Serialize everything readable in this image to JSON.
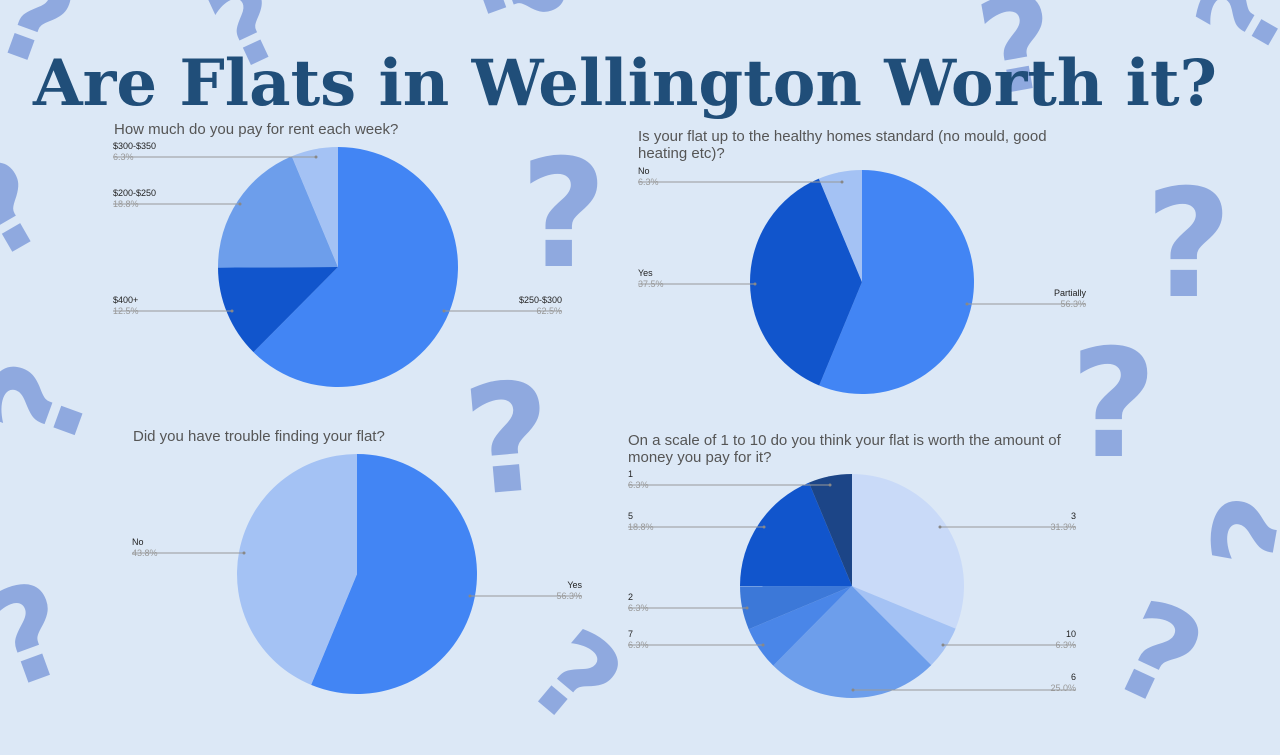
{
  "slide": {
    "title": "Are Flats in Wellington Worth it?"
  },
  "decoration": {
    "glyph": "?",
    "color": "#8fa9df"
  },
  "chart_data": [
    {
      "type": "pie",
      "title": "How much do you pay for rent each week?",
      "slices": [
        {
          "label": "$250-$300",
          "pct": "62.5%",
          "value": 62.5,
          "color": "#4285f4"
        },
        {
          "label": "$400+",
          "pct": "12.5%",
          "value": 12.5,
          "color": "#1155cc"
        },
        {
          "label": "$200-$250",
          "pct": "18.8%",
          "value": 18.8,
          "color": "#6d9eeb"
        },
        {
          "label": "$300-$350",
          "pct": "6.3%",
          "value": 6.3,
          "color": "#a4c2f4"
        }
      ]
    },
    {
      "type": "pie",
      "title": "Is your flat up to the healthy homes standard (no mould, good heating etc)?",
      "slices": [
        {
          "label": "Partially",
          "pct": "56.3%",
          "value": 56.3,
          "color": "#4285f4"
        },
        {
          "label": "Yes",
          "pct": "37.5%",
          "value": 37.5,
          "color": "#1155cc"
        },
        {
          "label": "No",
          "pct": "6.3%",
          "value": 6.3,
          "color": "#a4c2f4"
        }
      ]
    },
    {
      "type": "pie",
      "title": "Did you have trouble finding your flat?",
      "slices": [
        {
          "label": "Yes",
          "pct": "56.3%",
          "value": 56.3,
          "color": "#4285f4"
        },
        {
          "label": "No",
          "pct": "43.8%",
          "value": 43.8,
          "color": "#a4c2f4"
        }
      ]
    },
    {
      "type": "pie",
      "title": "On a scale of 1 to 10 do you think your flat is worth the amount of money you pay for it?",
      "slices": [
        {
          "label": "3",
          "pct": "31.3%",
          "value": 31.3,
          "color": "#c9daf8"
        },
        {
          "label": "10",
          "pct": "6.3%",
          "value": 6.3,
          "color": "#a4c2f4"
        },
        {
          "label": "6",
          "pct": "25.0%",
          "value": 25.0,
          "color": "#6d9eeb"
        },
        {
          "label": "7",
          "pct": "6.3%",
          "value": 6.3,
          "color": "#4a86e8"
        },
        {
          "label": "2",
          "pct": "6.3%",
          "value": 6.3,
          "color": "#3c78d8"
        },
        {
          "label": "5",
          "pct": "18.8%",
          "value": 18.8,
          "color": "#1155cc"
        },
        {
          "label": "1",
          "pct": "6.3%",
          "value": 6.3,
          "color": "#1c4587"
        }
      ]
    }
  ]
}
